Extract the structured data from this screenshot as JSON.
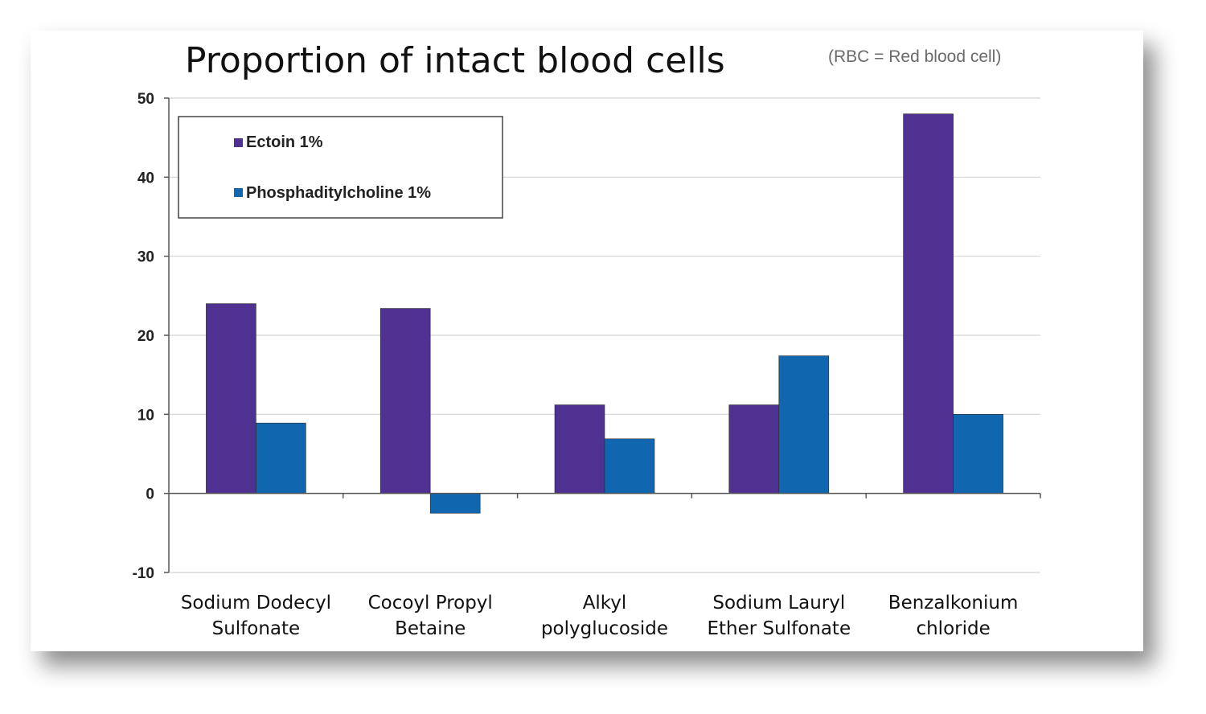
{
  "chart_data": {
    "type": "bar",
    "title": "Proportion of intact blood cells",
    "note": "(RBC = Red blood cell)",
    "categories": [
      [
        "Sodium Dodecyl",
        "Sulfonate"
      ],
      [
        "Cocoyl Propyl",
        "Betaine"
      ],
      [
        "Alkyl",
        "polyglucoside"
      ],
      [
        "Sodium Lauryl",
        "Ether Sulfonate"
      ],
      [
        "Benzalkonium",
        "chloride"
      ]
    ],
    "series": [
      {
        "name": "Ectoin 1%",
        "color": "#4f3191",
        "values": [
          24,
          23.4,
          11.2,
          11.2,
          48
        ]
      },
      {
        "name": "Phosphaditylcholine 1%",
        "color": "#1067b0",
        "values": [
          8.9,
          -2.5,
          6.9,
          17.4,
          10
        ]
      }
    ],
    "ylim": [
      -10,
      50
    ],
    "yticks": [
      "-10",
      "0",
      "10",
      "20",
      "30",
      "40",
      "50"
    ],
    "grid": true,
    "legend_position": "top-left"
  }
}
